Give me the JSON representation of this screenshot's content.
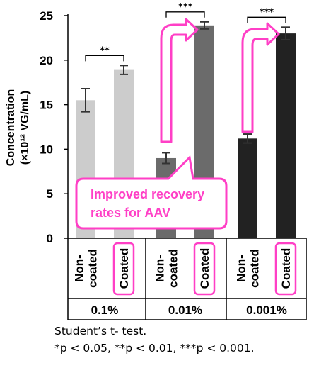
{
  "chart_data": {
    "type": "bar",
    "ylabel_line1": "Concentration",
    "ylabel_line2": "(×10¹² VG/mL)",
    "ylim": [
      0,
      25
    ],
    "yticks": [
      "0",
      "5",
      "10",
      "15",
      "20",
      "25"
    ],
    "groups": [
      {
        "label": "0.1%",
        "significance": "**",
        "bars": [
          {
            "category": [
              "Non-",
              "coated"
            ],
            "value": 15.5,
            "error": 1.3,
            "color": "#cccccc"
          },
          {
            "category": [
              "Coated"
            ],
            "value": 18.9,
            "error": 0.5,
            "color": "#cccccc",
            "highlight": true
          }
        ]
      },
      {
        "label": "0.01%",
        "significance": "***",
        "bars": [
          {
            "category": [
              "Non-",
              "coated"
            ],
            "value": 9.0,
            "error": 0.6,
            "color": "#6b6b6b"
          },
          {
            "category": [
              "Coated"
            ],
            "value": 23.9,
            "error": 0.4,
            "color": "#6b6b6b",
            "highlight": true
          }
        ]
      },
      {
        "label": "0.001%",
        "significance": "***",
        "bars": [
          {
            "category": [
              "Non-",
              "coated"
            ],
            "value": 11.2,
            "error": 0.5,
            "color": "#222222"
          },
          {
            "category": [
              "Coated"
            ],
            "value": 23.0,
            "error": 0.7,
            "color": "#222222",
            "highlight": true
          }
        ]
      }
    ],
    "annotation": [
      "Improved recovery",
      "rates for AAV"
    ],
    "accent_color": "#ff3fc6"
  },
  "footnote": {
    "line1": "Student’s t- test.",
    "line2": "*p < 0.05, **p < 0.01, ***p < 0.001."
  }
}
